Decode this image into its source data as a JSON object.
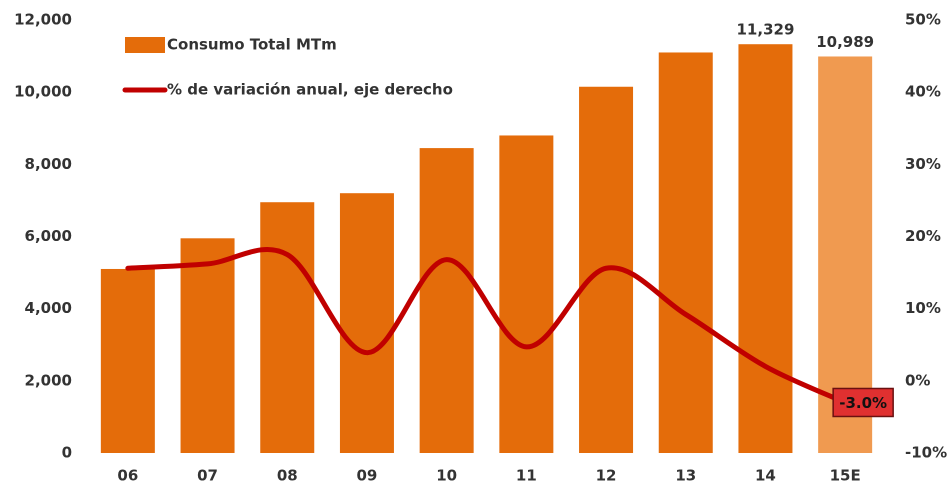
{
  "chart_data": {
    "type": "bar-line",
    "categories": [
      "06",
      "07",
      "08",
      "09",
      "10",
      "11",
      "12",
      "13",
      "14",
      "15E"
    ],
    "series": [
      {
        "name": "Consumo Total MTm",
        "type": "bar",
        "color": "#e46c0a",
        "colors": [
          "#e46c0a",
          "#e46c0a",
          "#e46c0a",
          "#e46c0a",
          "#e46c0a",
          "#e46c0a",
          "#e46c0a",
          "#e46c0a",
          "#e46c0a",
          "#f09a50"
        ],
        "values": [
          5100,
          5950,
          6950,
          7200,
          8450,
          8800,
          10150,
          11100,
          11329,
          10989
        ],
        "value_labels": [
          null,
          null,
          null,
          null,
          null,
          null,
          null,
          null,
          "11,329",
          "10,989"
        ]
      },
      {
        "name": "% de variación anual, eje derecho",
        "type": "line",
        "axis": "y2",
        "color": "#c00000",
        "values": [
          15.6,
          16.2,
          17.5,
          3.9,
          16.8,
          4.7,
          15.6,
          9.2,
          2.0,
          -3.0
        ],
        "value_labels": [
          null,
          null,
          null,
          null,
          null,
          null,
          null,
          null,
          null,
          "-3.0%"
        ]
      }
    ],
    "ylim": [
      0,
      12000
    ],
    "yticks": [
      0,
      {
        "value": 2000,
        "label": "2,000"
      },
      {
        "value": 4000,
        "label": "4,000"
      },
      {
        "value": 6000,
        "label": "6,000"
      },
      {
        "value": 8000,
        "label": "8,000"
      },
      {
        "value": 10000,
        "label": "10,000"
      },
      {
        "value": 12000,
        "label": "12,000"
      }
    ],
    "y2lim": [
      -10,
      50
    ],
    "y2ticks": [
      {
        "value": -10,
        "label": "-10%"
      },
      {
        "value": 0,
        "label": "0%"
      },
      {
        "value": 10,
        "label": "10%"
      },
      {
        "value": 20,
        "label": "20%"
      },
      {
        "value": 30,
        "label": "30%"
      },
      {
        "value": 40,
        "label": "40%"
      },
      {
        "value": 50,
        "label": "50%"
      }
    ],
    "grid": false,
    "legend": "top-left"
  }
}
